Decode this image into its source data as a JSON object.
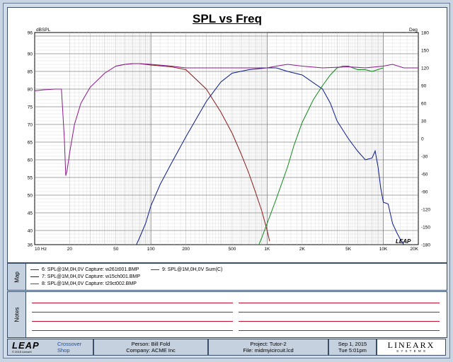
{
  "chart_data": {
    "type": "line",
    "title": "SPL vs Freq",
    "ylabel_left": "dBSPL",
    "ylabel_right": "Deg",
    "x_scale": "log",
    "xlim": [
      10,
      20000
    ],
    "ylim": [
      36,
      96
    ],
    "y2lim": [
      -180,
      180
    ],
    "x_ticks": [
      {
        "v": 10,
        "label": "10 Hz"
      },
      {
        "v": 20,
        "label": "20"
      },
      {
        "v": 50,
        "label": "50"
      },
      {
        "v": 100,
        "label": "100"
      },
      {
        "v": 200,
        "label": "200"
      },
      {
        "v": 500,
        "label": "500"
      },
      {
        "v": 1000,
        "label": "1K"
      },
      {
        "v": 2000,
        "label": "2K"
      },
      {
        "v": 5000,
        "label": "5K"
      },
      {
        "v": 10000,
        "label": "10K"
      },
      {
        "v": 20000,
        "label": "20K"
      }
    ],
    "y_ticks": [
      "36",
      "40",
      "45",
      "50",
      "55",
      "60",
      "65",
      "70",
      "75",
      "80",
      "85",
      "90",
      "96"
    ],
    "y2_ticks": [
      "-180",
      "-150",
      "-120",
      "-90",
      "-60",
      "-30",
      "0",
      "30",
      "60",
      "90",
      "120",
      "150",
      "180"
    ],
    "grid": true,
    "series": [
      {
        "name": "6: SPL@1M,0H,0V Capture: w261t001.BMP",
        "color": "#8b1a1a",
        "x": [
          50,
          60,
          70,
          80,
          100,
          150,
          200,
          300,
          400,
          500,
          600,
          700,
          800,
          900,
          1000,
          1050
        ],
        "y": [
          86.5,
          87.0,
          87.2,
          87.2,
          86.8,
          86.3,
          85.5,
          80.0,
          73.5,
          67.5,
          61.5,
          56.0,
          50.5,
          45.5,
          40.0,
          37.0
        ]
      },
      {
        "name": "7: SPL@1M,0H,0V Capture: w15ch001.BMP",
        "color": "#0a1a8b",
        "x": [
          75,
          80,
          90,
          100,
          120,
          150,
          200,
          300,
          400,
          500,
          700,
          1000,
          1200,
          1500,
          2000,
          3000,
          3500,
          4000,
          5000,
          6000,
          7000,
          8000,
          8500,
          9000,
          9500,
          10000,
          11000,
          12000,
          13000,
          14000,
          15000
        ],
        "y": [
          36.0,
          38.0,
          42.0,
          47.0,
          53.0,
          59.0,
          66.5,
          76.5,
          82.0,
          84.5,
          85.5,
          86.0,
          86.0,
          85.0,
          84.0,
          80.0,
          76.0,
          71.0,
          66.0,
          62.5,
          60.0,
          60.5,
          62.5,
          58.0,
          52.0,
          48.0,
          47.5,
          42.0,
          39.5,
          37.5,
          36.0
        ]
      },
      {
        "name": "8: SPL@1M,0H,0V Capture: t29ct002.BMP",
        "color": "#0f8a1a",
        "x": [
          850,
          900,
          1000,
          1200,
          1500,
          1700,
          2000,
          2500,
          3000,
          3500,
          4000,
          4500,
          5000,
          6000,
          7000,
          8000,
          10000
        ],
        "y": [
          36.0,
          38.0,
          42.0,
          49.0,
          58.0,
          64.0,
          70.5,
          77.0,
          81.0,
          84.0,
          86.0,
          86.5,
          86.5,
          85.5,
          85.5,
          85.0,
          86.0
        ]
      },
      {
        "name": "9: SPL@1M,0H,0V Sum(C)",
        "color": "#8b1a8b",
        "x": [
          10,
          12,
          15,
          17,
          18,
          18.5,
          19,
          20,
          22,
          25,
          30,
          40,
          50,
          60,
          70,
          80,
          100,
          150,
          200,
          300,
          500,
          700,
          1000,
          1200,
          1500,
          2000,
          3000,
          5000,
          7000,
          10000,
          12000,
          15000,
          20000
        ],
        "y": [
          79.5,
          79.8,
          80.0,
          80.0,
          66.0,
          55.5,
          57.0,
          62.0,
          70.0,
          76.0,
          80.5,
          84.5,
          86.5,
          87.0,
          87.2,
          87.2,
          87.0,
          86.5,
          86.0,
          86.0,
          86.0,
          86.0,
          86.0,
          86.5,
          87.0,
          86.5,
          86.0,
          86.3,
          86.0,
          86.5,
          87.0,
          86.0,
          86.0
        ]
      }
    ]
  },
  "map": {
    "label": "Map",
    "items": [
      {
        "text": "6: SPL@1M,0H,0V Capture: w261t001.BMP",
        "color": "#8b1a1a"
      },
      {
        "text": "7: SPL@1M,0H,0V Capture: w15ch001.BMP",
        "color": "#0a1a8b"
      },
      {
        "text": "8: SPL@1M,0H,0V Capture: t29ct002.BMP",
        "color": "#0f8a1a"
      },
      {
        "text": "9: SPL@1M,0H,0V Sum(C)",
        "color": "#8b1a8b"
      }
    ]
  },
  "notes": {
    "label": "Notes"
  },
  "footer": {
    "logo": "LEAP",
    "logo_small": "© 2015 LinearX",
    "product_line1": "Crossover",
    "product_line2": "Shop",
    "person": "Person: Bill Fold",
    "company": "Company: ACME Inc",
    "project": "Project: Tutor-2",
    "file": "File: midmyicircuit.lcd",
    "date": "Sep 1, 2015",
    "time": "Tue 5:01pm",
    "brand": "LINEARX",
    "brand_sub": "S Y S T E M S",
    "watermark": "LEAP"
  }
}
